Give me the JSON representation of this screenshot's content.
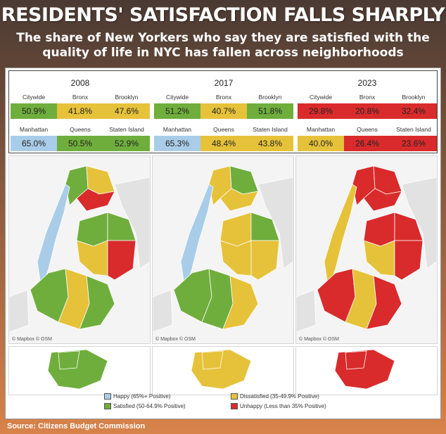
{
  "header": {
    "title": "RESIDENTS' SATISFACTION FALLS SHARPLY",
    "subtitle": "The share of New Yorkers who say they are satisfied with the quality of life in NYC has fallen across neighborhoods"
  },
  "colors": {
    "happy": "#a9cde8",
    "satisfied": "#6fae3c",
    "dissatisfied": "#e6c23a",
    "unhappy": "#d92b2b"
  },
  "years": [
    {
      "year": "2008",
      "cells": [
        {
          "label": "Citywide",
          "value": "50.9%",
          "cat": "satisfied"
        },
        {
          "label": "Bronx",
          "value": "41.8%",
          "cat": "dissatisfied"
        },
        {
          "label": "Brooklyn",
          "value": "47.6%",
          "cat": "dissatisfied"
        },
        {
          "label": "Manhattan",
          "value": "65.0%",
          "cat": "happy"
        },
        {
          "label": "Queens",
          "value": "50.5%",
          "cat": "satisfied"
        },
        {
          "label": "Staten Island",
          "value": "52.9%",
          "cat": "satisfied"
        }
      ]
    },
    {
      "year": "2017",
      "cells": [
        {
          "label": "Citywide",
          "value": "51.2%",
          "cat": "satisfied"
        },
        {
          "label": "Bronx",
          "value": "40.7%",
          "cat": "dissatisfied"
        },
        {
          "label": "Brooklyn",
          "value": "51.8%",
          "cat": "satisfied"
        },
        {
          "label": "Manhattan",
          "value": "65.3%",
          "cat": "happy"
        },
        {
          "label": "Queens",
          "value": "48.4%",
          "cat": "dissatisfied"
        },
        {
          "label": "Staten Island",
          "value": "43.8%",
          "cat": "dissatisfied"
        }
      ]
    },
    {
      "year": "2023",
      "cells": [
        {
          "label": "Citywide",
          "value": "29.8%",
          "cat": "unhappy"
        },
        {
          "label": "Bronx",
          "value": "20.8%",
          "cat": "unhappy"
        },
        {
          "label": "Brooklyn",
          "value": "32.4%",
          "cat": "unhappy"
        },
        {
          "label": "Manhattan",
          "value": "40.0%",
          "cat": "dissatisfied"
        },
        {
          "label": "Queens",
          "value": "26.4%",
          "cat": "unhappy"
        },
        {
          "label": "Staten Island",
          "value": "23.6%",
          "cat": "unhappy"
        }
      ]
    }
  ],
  "maps": {
    "attribution": "© Mapbox  © OSM",
    "dominant": [
      "satisfied",
      "dissatisfied",
      "unhappy"
    ]
  },
  "legend": [
    {
      "label": "Happy (65%+ Positive)",
      "cat": "happy"
    },
    {
      "label": "Dissatisfied (35-49.9% Positive)",
      "cat": "dissatisfied"
    },
    {
      "label": "Satisfied (50-64.9% Positive)",
      "cat": "satisfied"
    },
    {
      "label": "Unhappy (Less than 35% Positive)",
      "cat": "unhappy"
    }
  ],
  "source": "Source: Citizens Budget Commission"
}
